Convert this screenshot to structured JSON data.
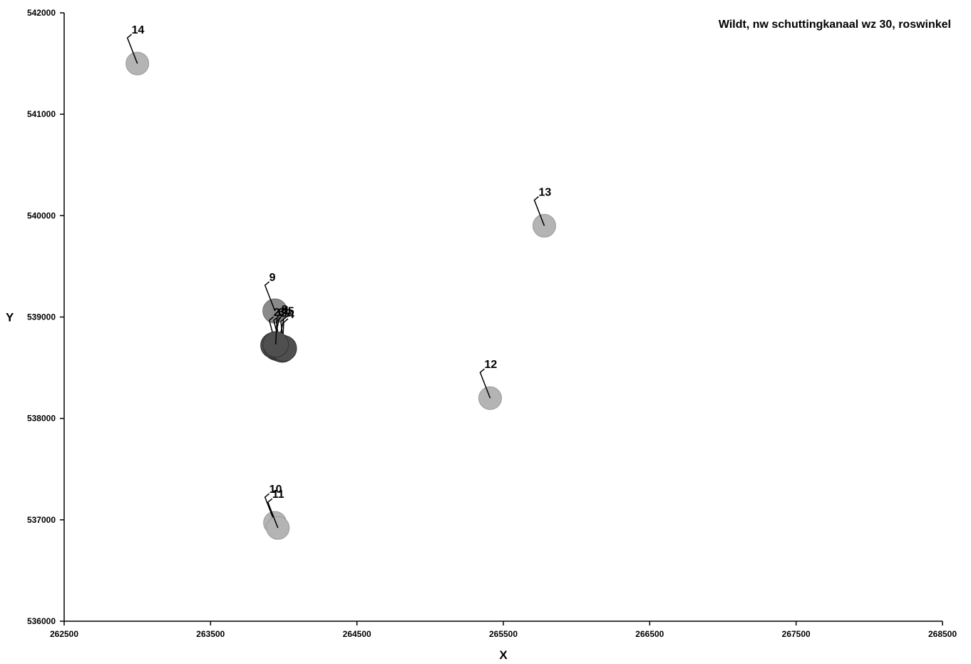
{
  "chart_data": {
    "type": "scatter",
    "title": "Wildt, nw schuttingkanaal wz 30, roswinkel",
    "xlabel": "X",
    "ylabel": "Y",
    "xlim": [
      262500,
      268500
    ],
    "ylim": [
      536000,
      542000
    ],
    "x_ticks": [
      "262500",
      "263500",
      "264500",
      "265500",
      "266500",
      "267500",
      "268500"
    ],
    "y_ticks": [
      "536000",
      "537000",
      "538000",
      "539000",
      "540000",
      "541000",
      "542000"
    ],
    "grid": false,
    "legend": "none",
    "colors": {
      "light": "#b4b4b4",
      "medium": "#8a8a8a",
      "dark": "#4f4f4f"
    },
    "points": [
      {
        "label": "14",
        "x": 263000,
        "y": 541500,
        "shade": "light"
      },
      {
        "label": "13",
        "x": 265780,
        "y": 539900,
        "shade": "light"
      },
      {
        "label": "9",
        "x": 263940,
        "y": 539060,
        "shade": "medium"
      },
      {
        "label": "1",
        "x": 263930,
        "y": 538720,
        "shade": "dark"
      },
      {
        "label": "2",
        "x": 263950,
        "y": 538700,
        "shade": "dark"
      },
      {
        "label": "3",
        "x": 263970,
        "y": 538690,
        "shade": "dark"
      },
      {
        "label": "4",
        "x": 263990,
        "y": 538680,
        "shade": "dark"
      },
      {
        "label": "5",
        "x": 263960,
        "y": 538710,
        "shade": "dark"
      },
      {
        "label": "6",
        "x": 263980,
        "y": 538700,
        "shade": "dark"
      },
      {
        "label": "7",
        "x": 264000,
        "y": 538690,
        "shade": "dark"
      },
      {
        "label": "8",
        "x": 263945,
        "y": 538730,
        "shade": "dark"
      },
      {
        "label": "12",
        "x": 265410,
        "y": 538200,
        "shade": "light"
      },
      {
        "label": "10",
        "x": 263940,
        "y": 536970,
        "shade": "light"
      },
      {
        "label": "11",
        "x": 263960,
        "y": 536920,
        "shade": "light"
      }
    ]
  }
}
